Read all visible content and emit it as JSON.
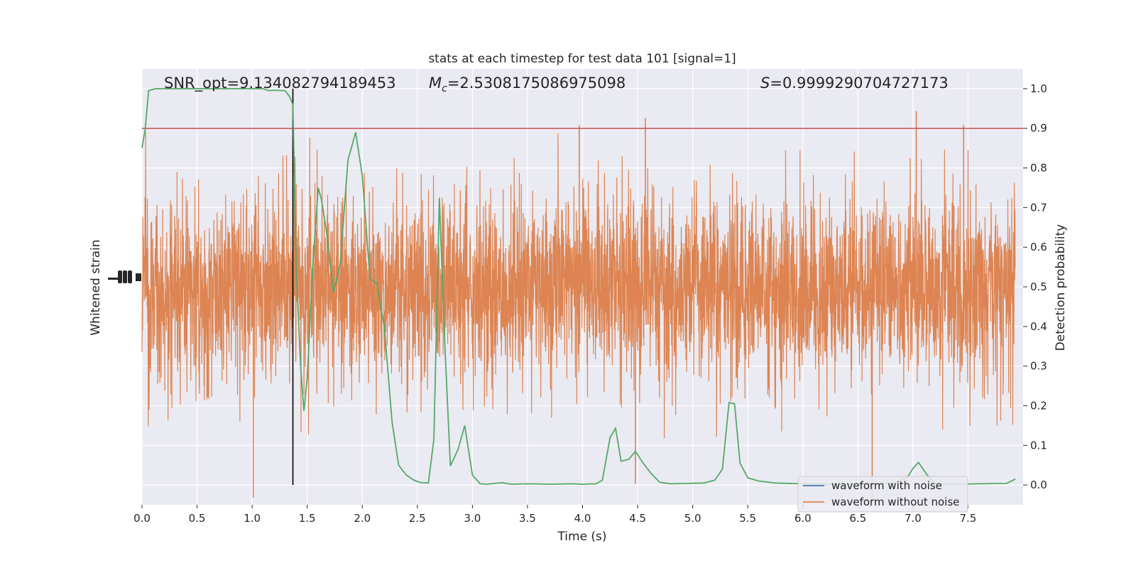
{
  "chart_data": {
    "type": "line",
    "title": "stats at each timestep for test data 101 [signal=1]",
    "xlabel": "Time (s)",
    "ylabel_left": "Whitened strain",
    "ylabel_right": "Detection probability",
    "xlim": [
      0.0,
      8.0
    ],
    "ylim_right": [
      -0.05,
      1.05
    ],
    "ylim_strain": [
      -0.31,
      0.31
    ],
    "x_ticks": [
      0.0,
      0.5,
      1.0,
      1.5,
      2.0,
      2.5,
      3.0,
      3.5,
      4.0,
      4.5,
      5.0,
      5.5,
      6.0,
      6.5,
      7.0,
      7.5
    ],
    "x_tick_labels": [
      "0.0",
      "0.5",
      "1.0",
      "1.5",
      "2.0",
      "2.5",
      "3.0",
      "3.5",
      "4.0",
      "4.5",
      "5.0",
      "5.5",
      "6.0",
      "6.5",
      "7.0",
      "7.5"
    ],
    "y_right_ticks": [
      0.0,
      0.1,
      0.2,
      0.3,
      0.4,
      0.5,
      0.6,
      0.7,
      0.8,
      0.9,
      1.0
    ],
    "y_right_tick_labels": [
      "0.0",
      "0.1",
      "0.2",
      "0.3",
      "0.4",
      "0.5",
      "0.6",
      "0.7",
      "0.8",
      "0.9",
      "1.0"
    ],
    "annotations": {
      "snr": "SNR_opt=9.134082794189453",
      "mc_symbol": "M",
      "mc_sub": "c",
      "mc_value": "=2.5308175086975098",
      "s_symbol": "S",
      "s_value": "=0.9999290704727173"
    },
    "threshold": 0.9,
    "merger_time": 1.37,
    "strain": {
      "name": "waveform without noise",
      "sample_rate": 512,
      "envelope_core": 0.1,
      "peak_max_up": 0.25,
      "peak_max_down": 0.3,
      "notable_peaks": [
        {
          "t": 6.63,
          "v": -0.3
        },
        {
          "t": 1.01,
          "v": -0.3
        },
        {
          "t": 4.48,
          "v": -0.28
        },
        {
          "t": 7.03,
          "v": 0.25
        },
        {
          "t": 4.57,
          "v": 0.24
        },
        {
          "t": 3.97,
          "v": 0.23
        },
        {
          "t": 7.46,
          "v": 0.23
        }
      ]
    },
    "series": [
      {
        "name": "waveform with noise",
        "color": "#4c72b0",
        "values": []
      },
      {
        "name": "waveform without noise",
        "color": "#dd8452"
      },
      {
        "name": "detection probability",
        "color": "#55a868",
        "x": [
          0.0,
          0.03,
          0.06,
          0.12,
          0.2,
          0.3,
          0.5,
          0.7,
          0.9,
          1.0,
          1.1,
          1.15,
          1.2,
          1.3,
          1.34,
          1.37,
          1.4,
          1.44,
          1.47,
          1.5,
          1.55,
          1.6,
          1.63,
          1.68,
          1.74,
          1.8,
          1.87,
          1.94,
          2.0,
          2.07,
          2.13,
          2.2,
          2.27,
          2.33,
          2.4,
          2.47,
          2.53,
          2.6,
          2.65,
          2.7,
          2.75,
          2.8,
          2.87,
          2.93,
          3.0,
          3.07,
          3.13,
          3.2,
          3.27,
          3.35,
          3.5,
          3.7,
          3.9,
          4.0,
          4.12,
          4.18,
          4.25,
          4.3,
          4.35,
          4.42,
          4.48,
          4.55,
          4.62,
          4.7,
          4.8,
          4.95,
          5.1,
          5.2,
          5.27,
          5.33,
          5.38,
          5.43,
          5.5,
          5.6,
          5.75,
          6.0,
          6.3,
          6.6,
          6.85,
          6.95,
          7.0,
          7.05,
          7.13,
          7.2,
          7.4,
          7.6,
          7.85,
          7.93
        ],
        "values": [
          0.85,
          0.9,
          0.995,
          1.0,
          1.0,
          1.0,
          1.0,
          1.0,
          1.0,
          1.0,
          1.0,
          0.995,
          0.996,
          0.995,
          0.98,
          0.96,
          0.55,
          0.3,
          0.187,
          0.27,
          0.55,
          0.75,
          0.72,
          0.63,
          0.485,
          0.56,
          0.82,
          0.89,
          0.78,
          0.52,
          0.51,
          0.4,
          0.16,
          0.05,
          0.025,
          0.012,
          0.006,
          0.005,
          0.115,
          0.725,
          0.35,
          0.048,
          0.09,
          0.15,
          0.025,
          0.003,
          0.002,
          0.004,
          0.006,
          0.002,
          0.003,
          0.002,
          0.003,
          0.002,
          0.003,
          0.012,
          0.12,
          0.143,
          0.06,
          0.065,
          0.085,
          0.055,
          0.03,
          0.007,
          0.003,
          0.004,
          0.005,
          0.012,
          0.04,
          0.208,
          0.205,
          0.055,
          0.018,
          0.01,
          0.005,
          0.003,
          0.002,
          0.003,
          0.005,
          0.02,
          0.042,
          0.057,
          0.025,
          0.003,
          0.002,
          0.003,
          0.004,
          0.015
        ]
      }
    ],
    "legend": [
      "waveform with noise",
      "waveform without noise"
    ],
    "legend_position": "lower-right",
    "colors": {
      "background": "#eaeaf2",
      "grid": "#ffffff",
      "threshold": "#c44e52",
      "merger": "#000000",
      "text": "#262626"
    }
  }
}
